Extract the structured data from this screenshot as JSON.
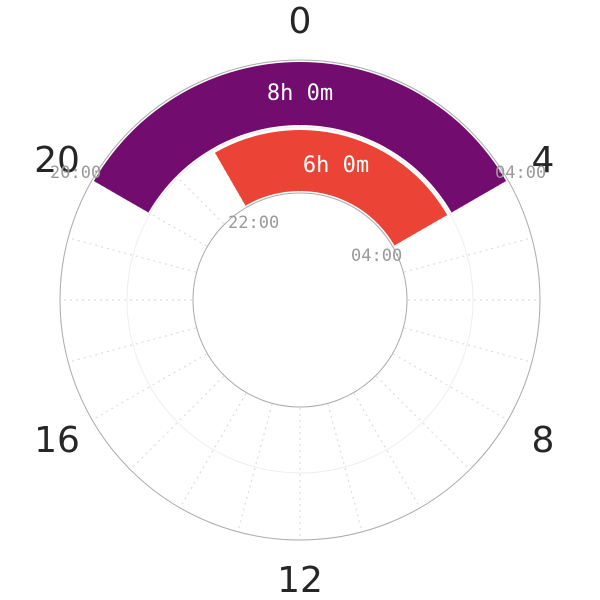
{
  "chart_data": {
    "type": "radial_bar",
    "title": "",
    "clock_hours": 24,
    "hour_tick_labels": [
      "0",
      "4",
      "8",
      "12",
      "16",
      "20"
    ],
    "grid": {
      "radial_spokes_every_hours": 1,
      "spoke_style": "dotted",
      "rings": [
        "inner",
        "middle",
        "outer"
      ]
    },
    "series": [
      {
        "name": "outer",
        "start": "20:00",
        "end": "04:00",
        "duration_label": "8h 0m",
        "duration_hours": 8,
        "color": "#730c6f",
        "ring": "outer"
      },
      {
        "name": "inner",
        "start": "22:00",
        "end": "04:00",
        "duration_label": "6h 0m",
        "duration_hours": 6,
        "color": "#eb4436",
        "ring": "inner"
      }
    ]
  },
  "labels": {
    "h0": "0",
    "h4": "4",
    "h8": "8",
    "h12": "12",
    "h16": "16",
    "h20": "20",
    "outer_band": "8h 0m",
    "inner_band": "6h 0m",
    "outer_start": "20:00",
    "outer_end": "04:00",
    "inner_start": "22:00",
    "inner_end": "04:00"
  },
  "colors": {
    "outer_band": "#730c6f",
    "inner_band": "#eb4436",
    "ring": "#aaaaaa",
    "grid": "#dddddd",
    "text": "#262626",
    "time_text": "#9a9a9a"
  }
}
